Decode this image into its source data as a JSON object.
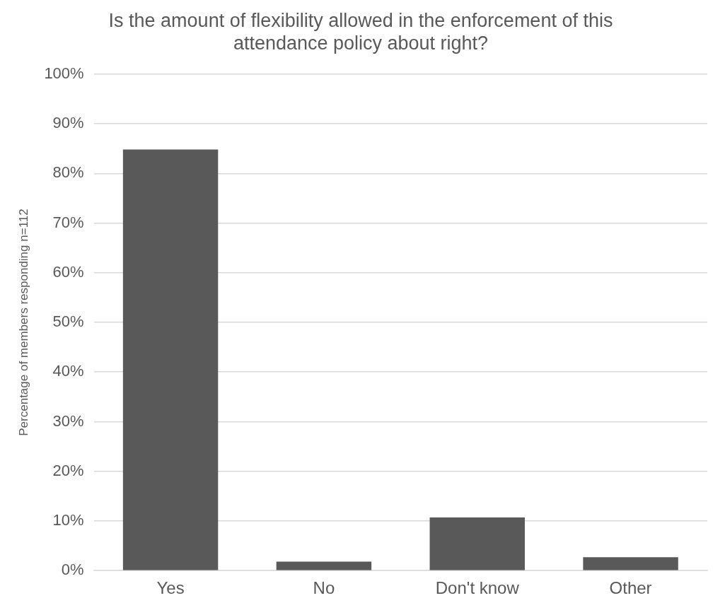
{
  "chart_data": {
    "type": "bar",
    "title": "Is the amount of flexibility allowed in the enforcement of this attendance policy about right?",
    "ylabel": "Percentage of members responding n=112",
    "categories": [
      "Yes",
      "No",
      "Don't know",
      "Other"
    ],
    "values": [
      84.8,
      1.8,
      10.7,
      2.7
    ],
    "color": "#595959",
    "ylim": [
      0,
      100
    ],
    "yticks": [
      {
        "value": 0,
        "label": "0%"
      },
      {
        "value": 10,
        "label": "10%"
      },
      {
        "value": 20,
        "label": "20%"
      },
      {
        "value": 30,
        "label": "30%"
      },
      {
        "value": 40,
        "label": "40%"
      },
      {
        "value": 50,
        "label": "50%"
      },
      {
        "value": 60,
        "label": "60%"
      },
      {
        "value": 70,
        "label": "70%"
      },
      {
        "value": 80,
        "label": "80%"
      },
      {
        "value": 90,
        "label": "90%"
      },
      {
        "value": 100,
        "label": "100%"
      }
    ],
    "grid": "y",
    "legend": false
  }
}
